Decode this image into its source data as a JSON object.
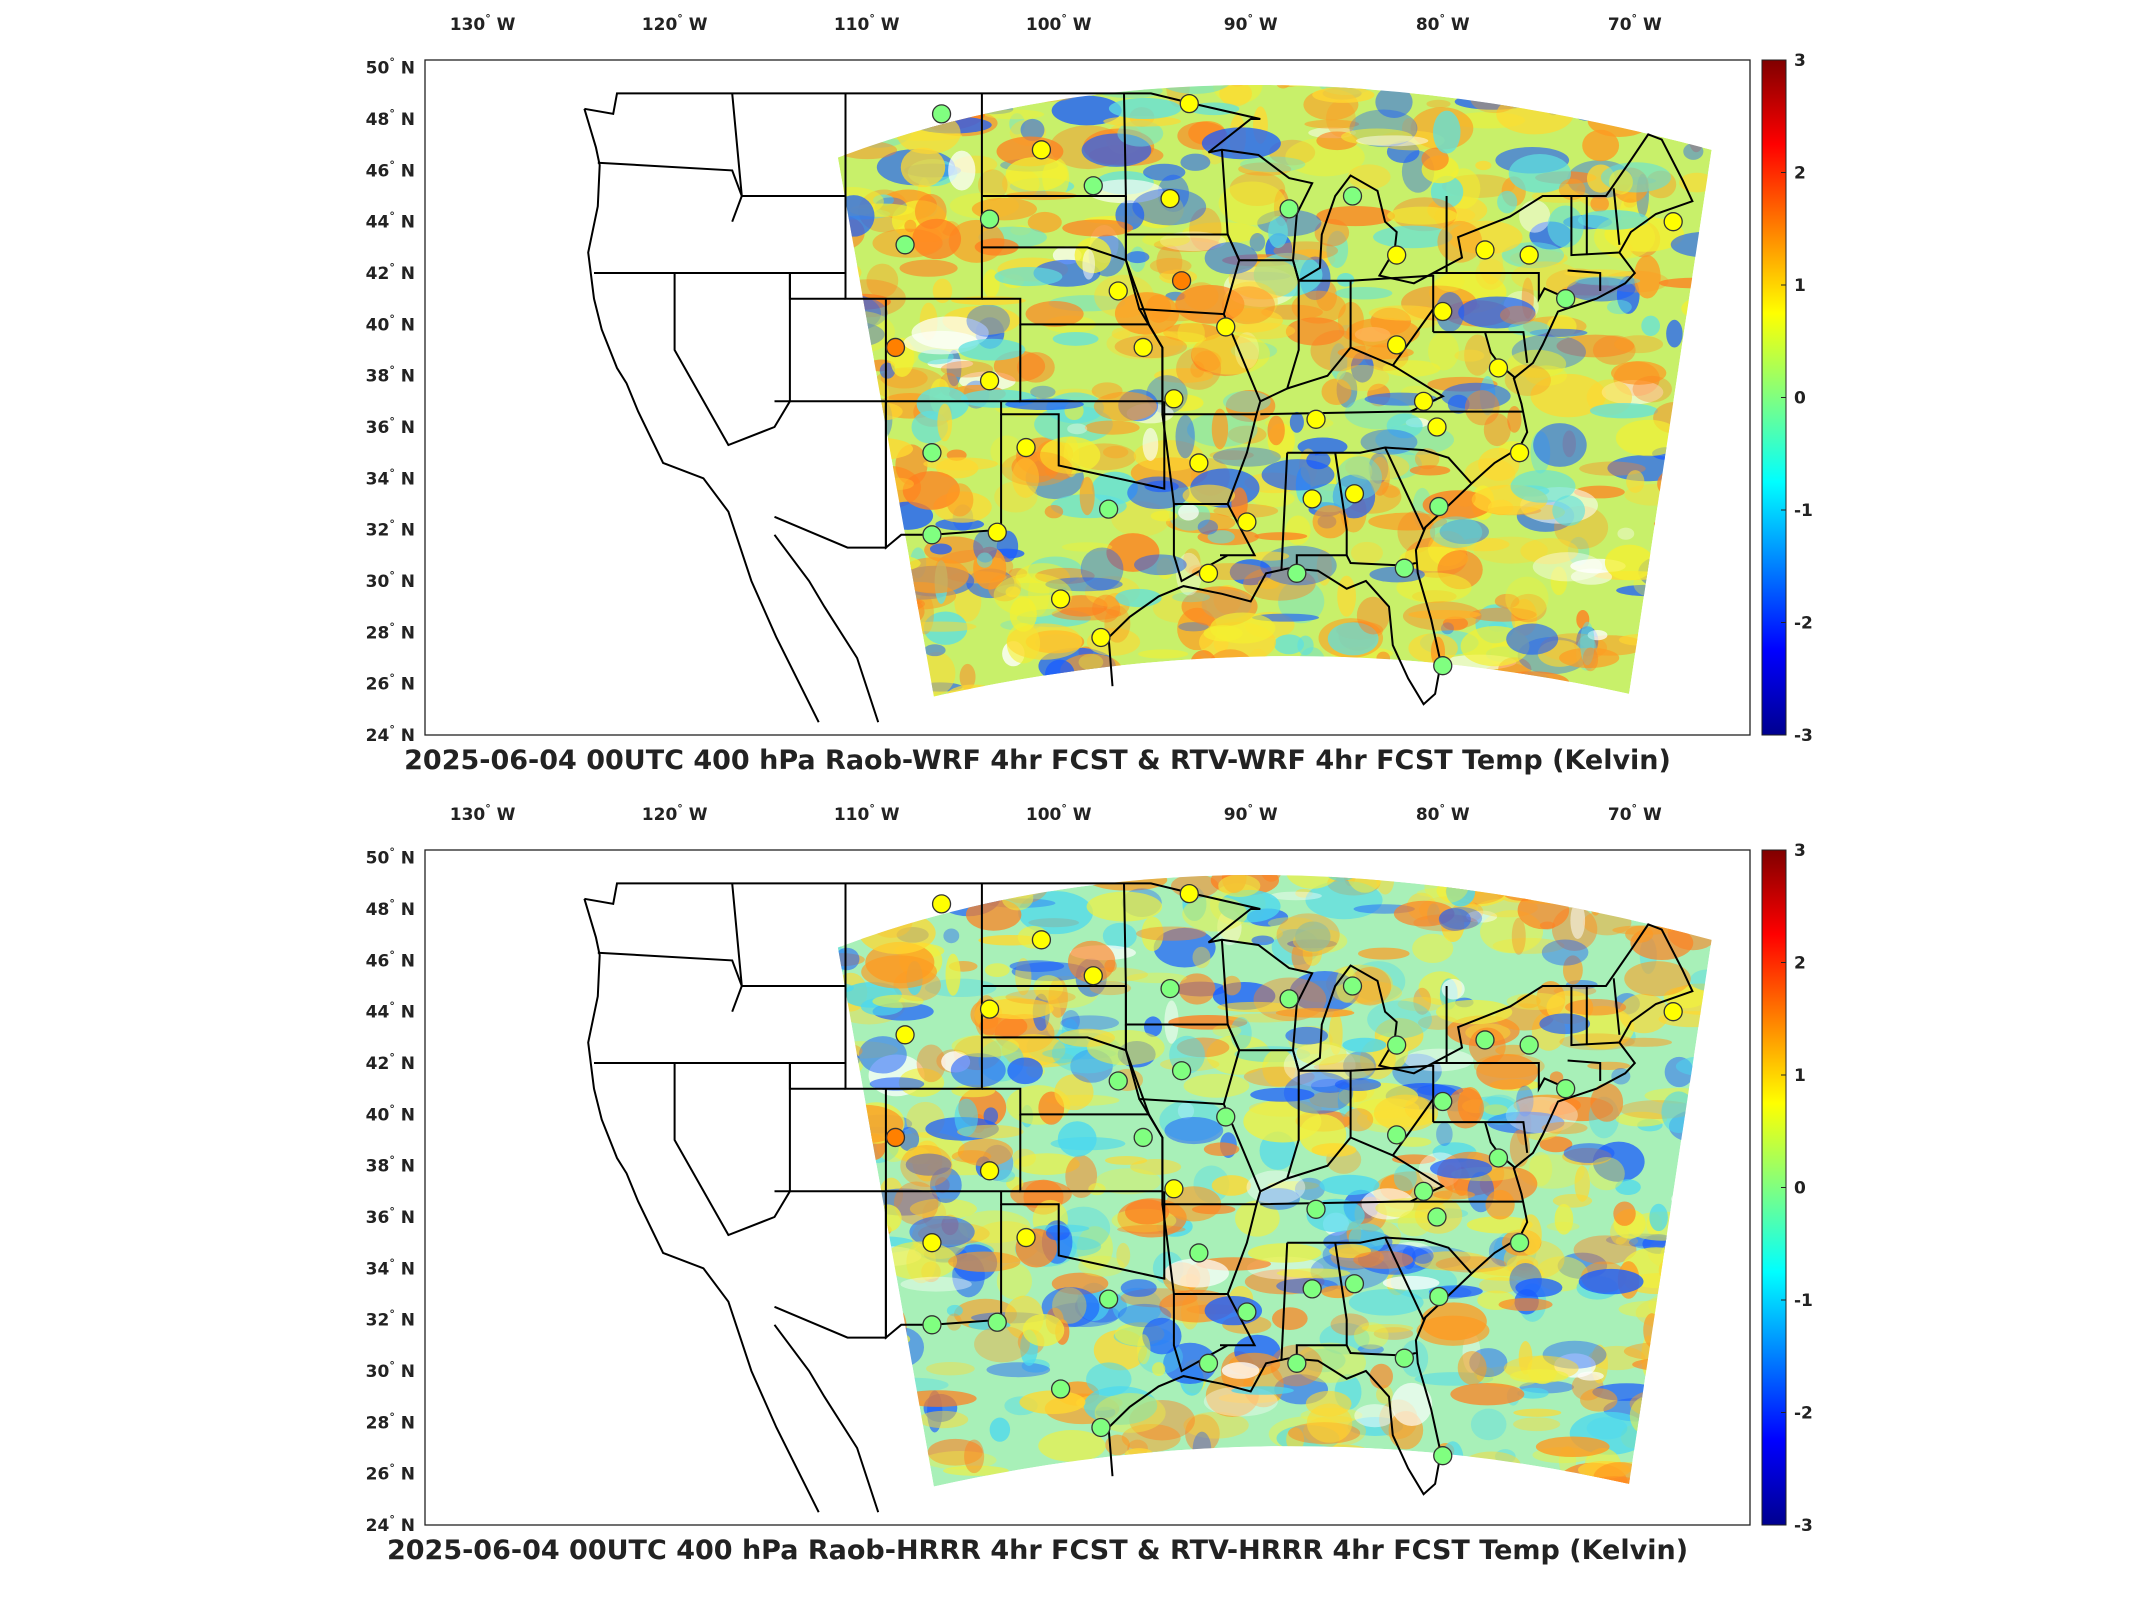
{
  "colormap": [
    "#00008f",
    "#0000ff",
    "#0080ff",
    "#00ffff",
    "#80ff80",
    "#ffff00",
    "#ff8000",
    "#ff0000",
    "#800000"
  ],
  "panels": [
    {
      "id": "wrf",
      "title": "2025-06-04 00UTC 400 hPa Raob-WRF 4hr FCST & RTV-WRF 4hr FCST Temp (Kelvin)",
      "lon_labels": [
        "130",
        "120",
        "110",
        "100",
        "90",
        "80",
        "70"
      ],
      "lon_hemi": "W",
      "lat_labels": [
        "50",
        "48",
        "46",
        "44",
        "42",
        "40",
        "38",
        "36",
        "34",
        "32",
        "30",
        "28",
        "26",
        "24"
      ],
      "lat_hemi": "N",
      "colorbar_labels": [
        "3",
        "2",
        "1",
        "0",
        "-1",
        "-2",
        "-3"
      ],
      "field": {
        "fill": "#c8f06a",
        "patches": [
          {
            "c": "#ffd830",
            "v": 0.8
          },
          {
            "c": "#ff9a20",
            "v": 1.4
          },
          {
            "c": "#5ee0e0",
            "v": -0.7
          },
          {
            "c": "#1a5cff",
            "v": -1.8
          },
          {
            "c": "#f4f030",
            "v": 0.5
          },
          {
            "c": "#ff8020",
            "v": 1.5
          },
          {
            "c": "#ffffff",
            "v": null
          }
        ]
      },
      "stations": [
        {
          "lon": -108.5,
          "lat": 39.1,
          "v": 1.6
        },
        {
          "lon": -106.6,
          "lat": 35.0,
          "v": 0.1
        },
        {
          "lon": -101.7,
          "lat": 35.2,
          "v": 0.6
        },
        {
          "lon": -100.9,
          "lat": 46.8,
          "v": 0.6
        },
        {
          "lon": -97.4,
          "lat": 32.8,
          "v": 0.3
        },
        {
          "lon": -95.6,
          "lat": 39.1,
          "v": 0.8
        },
        {
          "lon": -90.2,
          "lat": 32.3,
          "v": 0.6
        },
        {
          "lon": -86.8,
          "lat": 33.2,
          "v": 0.6
        },
        {
          "lon": -84.6,
          "lat": 33.4,
          "v": 0.6
        },
        {
          "lon": -80.0,
          "lat": 40.5,
          "v": 0.6
        },
        {
          "lon": -82.4,
          "lat": 42.7,
          "v": 0.6
        },
        {
          "lon": -75.5,
          "lat": 42.7,
          "v": 0.6
        },
        {
          "lon": -93.6,
          "lat": 41.7,
          "v": 1.2
        },
        {
          "lon": -86.6,
          "lat": 36.3,
          "v": 0.6
        },
        {
          "lon": -91.3,
          "lat": 39.9,
          "v": 0.6
        },
        {
          "lon": -96.9,
          "lat": 41.3,
          "v": 0.4
        },
        {
          "lon": -106.1,
          "lat": 48.2,
          "v": 0.2
        },
        {
          "lon": -103.6,
          "lat": 44.1,
          "v": 0.3
        },
        {
          "lon": -98.2,
          "lat": 45.4,
          "v": 0.3
        },
        {
          "lon": -94.2,
          "lat": 44.9,
          "v": 0.4
        },
        {
          "lon": -93.2,
          "lat": 48.6,
          "v": 0.4
        },
        {
          "lon": -88.0,
          "lat": 44.5,
          "v": 0.3
        },
        {
          "lon": -84.7,
          "lat": 45.0,
          "v": 0.3
        },
        {
          "lon": -77.8,
          "lat": 42.9,
          "v": 0.4
        },
        {
          "lon": -68.0,
          "lat": 44.0,
          "v": 0.4
        },
        {
          "lon": -73.6,
          "lat": 41.0,
          "v": 0.3
        },
        {
          "lon": -77.1,
          "lat": 38.3,
          "v": 0.4
        },
        {
          "lon": -80.3,
          "lat": 36.0,
          "v": 0.4
        },
        {
          "lon": -80.2,
          "lat": 32.9,
          "v": 0.3
        },
        {
          "lon": -80.0,
          "lat": 26.7,
          "v": 0.3
        },
        {
          "lon": -82.0,
          "lat": 30.5,
          "v": 0.3
        },
        {
          "lon": -87.6,
          "lat": 30.3,
          "v": 0.3
        },
        {
          "lon": -92.2,
          "lat": 30.3,
          "v": 0.4
        },
        {
          "lon": -97.8,
          "lat": 27.8,
          "v": 0.4
        },
        {
          "lon": -99.9,
          "lat": 29.3,
          "v": 0.4
        },
        {
          "lon": -103.2,
          "lat": 31.9,
          "v": 0.4
        },
        {
          "lon": -106.6,
          "lat": 31.8,
          "v": 0.1
        },
        {
          "lon": -108.0,
          "lat": 43.1,
          "v": 0.3
        },
        {
          "lon": -94.0,
          "lat": 37.1,
          "v": 0.5
        },
        {
          "lon": -92.7,
          "lat": 34.6,
          "v": 0.6
        },
        {
          "lon": -82.4,
          "lat": 39.2,
          "v": 0.5
        },
        {
          "lon": -81.0,
          "lat": 37.0,
          "v": 0.4
        },
        {
          "lon": -103.6,
          "lat": 37.8,
          "v": 0.5
        },
        {
          "lon": -76.0,
          "lat": 35.0,
          "v": 0.4
        }
      ]
    },
    {
      "id": "hrrr",
      "title": "2025-06-04 00UTC 400 hPa Raob-HRRR 4hr FCST & RTV-HRRR 4hr FCST Temp (Kelvin)",
      "lon_labels": [
        "130",
        "120",
        "110",
        "100",
        "90",
        "80",
        "70"
      ],
      "lon_hemi": "W",
      "lat_labels": [
        "50",
        "48",
        "46",
        "44",
        "42",
        "40",
        "38",
        "36",
        "34",
        "32",
        "30",
        "28",
        "26",
        "24"
      ],
      "lat_hemi": "N",
      "colorbar_labels": [
        "3",
        "2",
        "1",
        "0",
        "-1",
        "-2",
        "-3"
      ],
      "field": {
        "fill": "#a8f0b8",
        "patches": [
          {
            "c": "#ffd830",
            "v": 0.8
          },
          {
            "c": "#ff9a20",
            "v": 1.3
          },
          {
            "c": "#4ad8f0",
            "v": -0.9
          },
          {
            "c": "#1a5cff",
            "v": -1.8
          },
          {
            "c": "#f0f040",
            "v": 0.4
          },
          {
            "c": "#ff8020",
            "v": 1.4
          },
          {
            "c": "#ffffff",
            "v": null
          }
        ]
      },
      "stations": [
        {
          "lon": -108.5,
          "lat": 39.1,
          "v": 1.8
        },
        {
          "lon": -106.6,
          "lat": 35.0,
          "v": 0.9
        },
        {
          "lon": -101.7,
          "lat": 35.2,
          "v": 1.0
        },
        {
          "lon": -100.9,
          "lat": 46.8,
          "v": 0.6
        },
        {
          "lon": -97.4,
          "lat": 32.8,
          "v": 0.2
        },
        {
          "lon": -95.6,
          "lat": 39.1,
          "v": 0.3
        },
        {
          "lon": -90.2,
          "lat": 32.3,
          "v": 0.2
        },
        {
          "lon": -86.8,
          "lat": 33.2,
          "v": 0.2
        },
        {
          "lon": -84.6,
          "lat": 33.4,
          "v": 0.2
        },
        {
          "lon": -80.0,
          "lat": 40.5,
          "v": 0.3
        },
        {
          "lon": -82.4,
          "lat": 42.7,
          "v": 0.3
        },
        {
          "lon": -75.5,
          "lat": 42.7,
          "v": 0.3
        },
        {
          "lon": -93.6,
          "lat": 41.7,
          "v": 0.2
        },
        {
          "lon": -86.6,
          "lat": 36.3,
          "v": 0.2
        },
        {
          "lon": -91.3,
          "lat": 39.9,
          "v": 0.3
        },
        {
          "lon": -96.9,
          "lat": 41.3,
          "v": 0.2
        },
        {
          "lon": -106.1,
          "lat": 48.2,
          "v": 0.6
        },
        {
          "lon": -103.6,
          "lat": 44.1,
          "v": 0.6
        },
        {
          "lon": -98.2,
          "lat": 45.4,
          "v": 0.6
        },
        {
          "lon": -94.2,
          "lat": 44.9,
          "v": 0.3
        },
        {
          "lon": -93.2,
          "lat": 48.6,
          "v": 0.4
        },
        {
          "lon": -88.0,
          "lat": 44.5,
          "v": 0.3
        },
        {
          "lon": -84.7,
          "lat": 45.0,
          "v": 0.3
        },
        {
          "lon": -77.8,
          "lat": 42.9,
          "v": 0.3
        },
        {
          "lon": -68.0,
          "lat": 44.0,
          "v": 0.4
        },
        {
          "lon": -73.6,
          "lat": 41.0,
          "v": 0.2
        },
        {
          "lon": -77.1,
          "lat": 38.3,
          "v": 0.3
        },
        {
          "lon": -80.3,
          "lat": 36.0,
          "v": 0.3
        },
        {
          "lon": -80.2,
          "lat": 32.9,
          "v": 0.2
        },
        {
          "lon": -80.0,
          "lat": 26.7,
          "v": 0.2
        },
        {
          "lon": -82.0,
          "lat": 30.5,
          "v": 0.2
        },
        {
          "lon": -87.6,
          "lat": 30.3,
          "v": 0.2
        },
        {
          "lon": -92.2,
          "lat": 30.3,
          "v": 0.2
        },
        {
          "lon": -97.8,
          "lat": 27.8,
          "v": 0.3
        },
        {
          "lon": -99.9,
          "lat": 29.3,
          "v": 0.3
        },
        {
          "lon": -103.2,
          "lat": 31.9,
          "v": 0.3
        },
        {
          "lon": -106.6,
          "lat": 31.8,
          "v": 0.3
        },
        {
          "lon": -108.0,
          "lat": 43.1,
          "v": 0.6
        },
        {
          "lon": -94.0,
          "lat": 37.1,
          "v": 0.6
        },
        {
          "lon": -92.7,
          "lat": 34.6,
          "v": 0.2
        },
        {
          "lon": -82.4,
          "lat": 39.2,
          "v": 0.2
        },
        {
          "lon": -81.0,
          "lat": 37.0,
          "v": 0.2
        },
        {
          "lon": -103.6,
          "lat": 37.8,
          "v": 0.6
        },
        {
          "lon": -76.0,
          "lat": 35.0,
          "v": 0.3
        }
      ]
    }
  ]
}
